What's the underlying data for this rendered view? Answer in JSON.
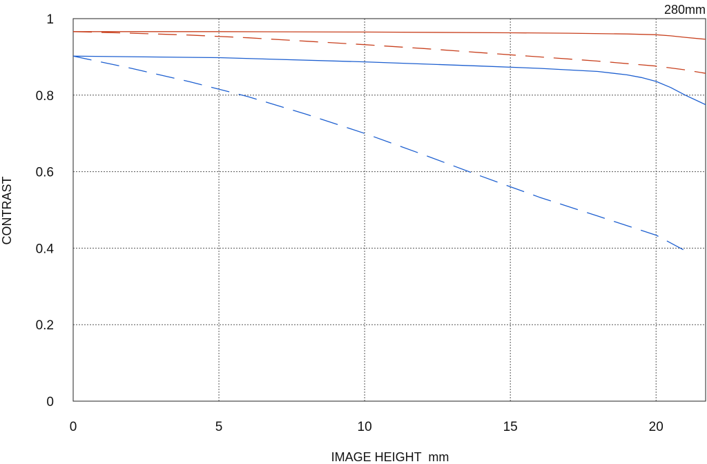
{
  "chart_data": {
    "type": "line",
    "annotation": "280mm",
    "xlabel": "IMAGE HEIGHT  mm",
    "ylabel": "CONTRAST",
    "xlim": [
      0,
      21.7
    ],
    "ylim": [
      0,
      1
    ],
    "x_ticks": [
      0,
      5,
      10,
      15,
      20
    ],
    "x_tick_labels": [
      "0",
      "5",
      "10",
      "15",
      "20"
    ],
    "y_ticks": [
      0,
      0.2,
      0.4,
      0.6,
      0.8,
      1
    ],
    "y_tick_labels": [
      "0",
      "0.2",
      "0.4",
      "0.6",
      "0.8",
      "1"
    ],
    "grid": true,
    "series": [
      {
        "color": "#c8401e",
        "style": "solid",
        "x": [
          0,
          5,
          10,
          15,
          17,
          19,
          20,
          20.5,
          21,
          21.7
        ],
        "y": [
          0.966,
          0.966,
          0.965,
          0.963,
          0.962,
          0.96,
          0.958,
          0.955,
          0.951,
          0.946
        ]
      },
      {
        "color": "#c8401e",
        "style": "dashed",
        "x": [
          0,
          2,
          4,
          6,
          8,
          10,
          12,
          14,
          16,
          18,
          20,
          21,
          21.7
        ],
        "y": [
          0.966,
          0.962,
          0.957,
          0.95,
          0.941,
          0.932,
          0.922,
          0.911,
          0.9,
          0.889,
          0.876,
          0.866,
          0.857
        ]
      },
      {
        "color": "#1d5fd0",
        "style": "solid",
        "x": [
          0,
          5,
          10,
          14,
          16,
          18,
          19,
          19.5,
          20,
          20.5,
          21,
          21.7
        ],
        "y": [
          0.902,
          0.898,
          0.887,
          0.876,
          0.87,
          0.862,
          0.853,
          0.846,
          0.836,
          0.82,
          0.8,
          0.775
        ]
      },
      {
        "color": "#1d5fd0",
        "style": "dashed",
        "x": [
          0,
          2,
          4,
          6,
          8,
          10,
          12,
          14,
          16,
          18,
          20,
          21.2
        ],
        "y": [
          0.902,
          0.87,
          0.835,
          0.796,
          0.75,
          0.7,
          0.645,
          0.588,
          0.533,
          0.484,
          0.434,
          0.385
        ]
      }
    ]
  }
}
